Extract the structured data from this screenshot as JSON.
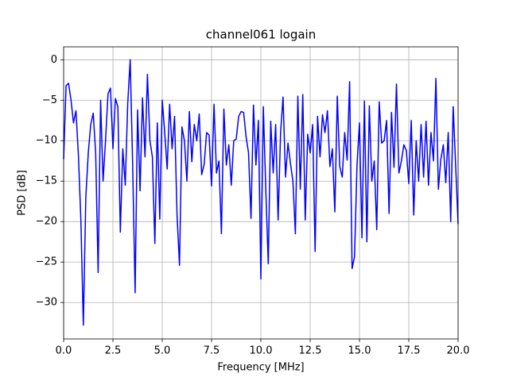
{
  "chart_data": {
    "type": "line",
    "title": "channel061 logain",
    "x_label": "Frequency [MHz]",
    "y_label": "PSD [dB]",
    "x": [
      0,
      0.125,
      0.25,
      0.375,
      0.5,
      0.625,
      0.75,
      0.875,
      1,
      1.125,
      1.25,
      1.375,
      1.5,
      1.625,
      1.75,
      1.875,
      2,
      2.125,
      2.25,
      2.375,
      2.5,
      2.625,
      2.75,
      2.875,
      3,
      3.125,
      3.25,
      3.375,
      3.5,
      3.625,
      3.75,
      3.875,
      4,
      4.125,
      4.25,
      4.375,
      4.5,
      4.625,
      4.75,
      4.875,
      5,
      5.125,
      5.25,
      5.375,
      5.5,
      5.625,
      5.75,
      5.875,
      6,
      6.125,
      6.25,
      6.375,
      6.5,
      6.625,
      6.75,
      6.875,
      7,
      7.125,
      7.25,
      7.375,
      7.5,
      7.625,
      7.75,
      7.875,
      8,
      8.125,
      8.25,
      8.375,
      8.5,
      8.625,
      8.75,
      8.875,
      9,
      9.125,
      9.25,
      9.375,
      9.5,
      9.625,
      9.75,
      9.875,
      10,
      10.125,
      10.25,
      10.375,
      10.5,
      10.625,
      10.75,
      10.875,
      11,
      11.125,
      11.25,
      11.375,
      11.5,
      11.625,
      11.75,
      11.875,
      12,
      12.125,
      12.25,
      12.375,
      12.5,
      12.625,
      12.75,
      12.875,
      13,
      13.125,
      13.25,
      13.375,
      13.5,
      13.625,
      13.75,
      13.875,
      14,
      14.125,
      14.25,
      14.375,
      14.5,
      14.625,
      14.75,
      14.875,
      15,
      15.125,
      15.25,
      15.375,
      15.5,
      15.625,
      15.75,
      15.875,
      16,
      16.125,
      16.25,
      16.375,
      16.5,
      16.625,
      16.75,
      16.875,
      17,
      17.125,
      17.25,
      17.375,
      17.5,
      17.625,
      17.75,
      17.875,
      18,
      18.125,
      18.25,
      18.375,
      18.5,
      18.625,
      18.75,
      18.875,
      19,
      19.125,
      19.25,
      19.375,
      19.5,
      19.625,
      19.75,
      19.875,
      20
    ],
    "series": [
      {
        "name": "PSD",
        "color": "#0000ff",
        "values": [
          -12.3,
          -3.2,
          -2.9,
          -5,
          -7.8,
          -6.3,
          -11.8,
          -19.8,
          -32.8,
          -17,
          -11.5,
          -8,
          -6.6,
          -11.5,
          -26.3,
          -5,
          -15,
          -10,
          -4.2,
          -3.5,
          -11,
          -4.8,
          -5.8,
          -21.3,
          -11,
          -15.5,
          -5.4,
          0,
          -13,
          -28.8,
          -6.2,
          -16.2,
          -4.7,
          -12,
          -1.8,
          -10,
          -12,
          -22.7,
          -7.8,
          -19.7,
          -5,
          -9,
          -13.5,
          -5.5,
          -11,
          -7,
          -19.2,
          -25.4,
          -8.3,
          -10,
          -15,
          -6.4,
          -12.6,
          -8,
          -10,
          -6.7,
          -14.2,
          -12.9,
          -9,
          -9.3,
          -15.6,
          -5.5,
          -14,
          -12.5,
          -21.5,
          -6.1,
          -13,
          -10.5,
          -15.5,
          -10,
          -9.8,
          -7,
          -6.4,
          -6.5,
          -9.5,
          -11.5,
          -19.6,
          -5.6,
          -13,
          -7.5,
          -27.1,
          -5.8,
          -16,
          -25.2,
          -7.6,
          -14,
          -8,
          -19.8,
          -9,
          -4.6,
          -14.5,
          -10.3,
          -12.8,
          -15,
          -21.5,
          -4.5,
          -16,
          -4.3,
          -19.8,
          -9.2,
          -11.5,
          -8,
          -23.7,
          -7,
          -12,
          -6.8,
          -9,
          -6.3,
          -13.2,
          -11,
          -18.8,
          -4.5,
          -13.2,
          -14.5,
          -9,
          -12.4,
          -2.7,
          -25.8,
          -24.3,
          -13,
          -7.8,
          -22,
          -5.1,
          -22.5,
          -5.7,
          -15,
          -12.5,
          -21,
          -5.2,
          -10.3,
          -10,
          -7.5,
          -19,
          -6.5,
          -13.3,
          -3,
          -14,
          -12.5,
          -10.5,
          -11.2,
          -15.3,
          -7.5,
          -19.2,
          -10,
          -15,
          -8,
          -14.5,
          -7.6,
          -15.5,
          -9,
          -12.5,
          -2.3,
          -16,
          -12.3,
          -10.5,
          -15.2,
          -9,
          -20,
          -5.8,
          -13,
          -20.3
        ]
      }
    ],
    "xlim": [
      0,
      20
    ],
    "ylim": [
      -34.5,
      1.6
    ],
    "xticks": [
      {
        "value": 0,
        "label": "0.0"
      },
      2.5,
      {
        "value": 5,
        "label": "5.0"
      },
      7.5,
      {
        "value": 10,
        "label": "10.0"
      },
      12.5,
      {
        "value": 15,
        "label": "15.0"
      },
      17.5,
      {
        "value": 20,
        "label": "20.0"
      }
    ],
    "yticks": [
      {
        "value": -30,
        "label": "−30"
      },
      {
        "value": -25,
        "label": "−25"
      },
      {
        "value": -20,
        "label": "−20"
      },
      {
        "value": -15,
        "label": "−15"
      },
      {
        "value": -10,
        "label": "−10"
      },
      {
        "value": -5,
        "label": "−5"
      },
      0
    ],
    "grid": true
  }
}
